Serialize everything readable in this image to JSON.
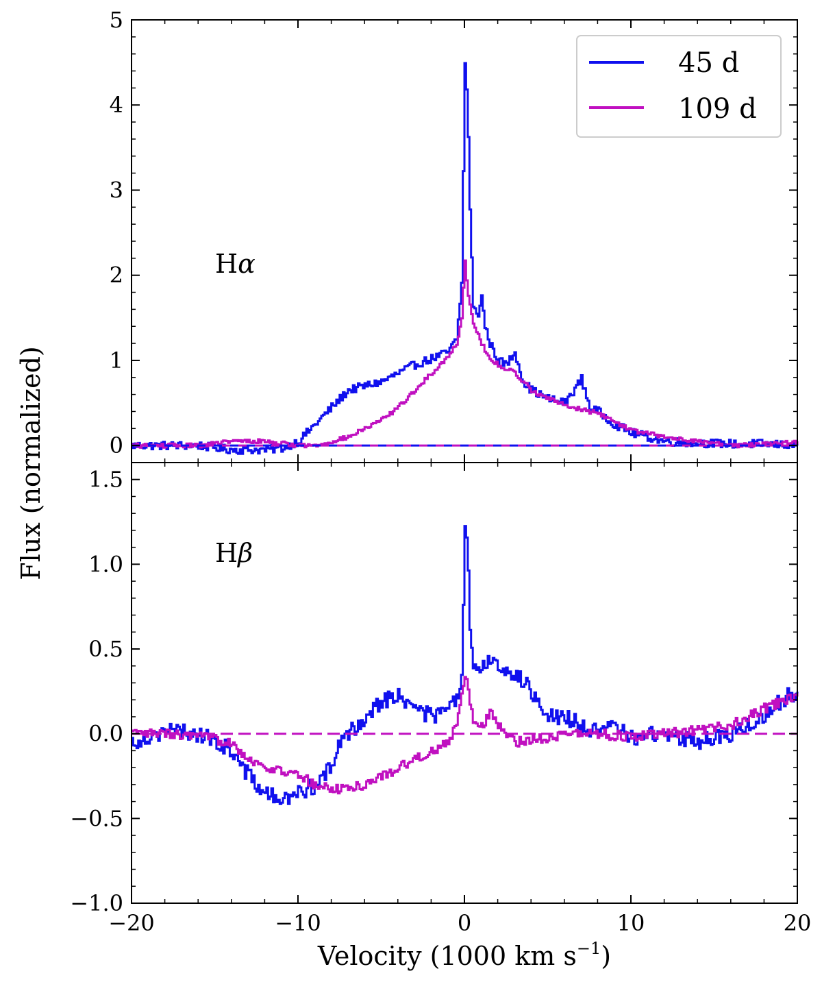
{
  "chart_data": [
    {
      "type": "line",
      "panel": "top",
      "annotation": "Hα",
      "annotation_parts": {
        "base": "H",
        "greek": "α"
      },
      "xlim": [
        -20,
        20
      ],
      "ylim": [
        -0.2,
        5
      ],
      "xticks": [
        -20,
        -10,
        0,
        10,
        20
      ],
      "yticks": [
        0,
        1,
        2,
        3,
        4,
        5
      ],
      "ytick_labels": [
        "0",
        "1",
        "2",
        "3",
        "4",
        "5"
      ],
      "zero_line": {
        "style": "dashed",
        "colors": [
          "#1010ee",
          "#c010c0"
        ]
      },
      "series": [
        {
          "name": "45 d",
          "color": "#1010ee",
          "x": [
            -20,
            -18,
            -16,
            -14,
            -12,
            -11,
            -10,
            -9,
            -8,
            -7,
            -6,
            -5,
            -4,
            -3,
            -2,
            -1,
            -0.5,
            -0.2,
            0,
            0.15,
            0.3,
            0.5,
            0.8,
            1.0,
            1.2,
            1.5,
            2,
            2.5,
            3,
            3.5,
            4,
            5,
            6,
            7,
            7.5,
            8,
            9,
            10,
            12,
            14,
            16,
            18,
            20
          ],
          "y": [
            0.0,
            0.0,
            0.0,
            -0.05,
            -0.05,
            -0.03,
            0.05,
            0.25,
            0.45,
            0.65,
            0.7,
            0.75,
            0.85,
            0.95,
            1.02,
            1.1,
            1.25,
            1.9,
            4.52,
            4.0,
            2.8,
            1.6,
            1.55,
            1.75,
            1.4,
            1.2,
            1.0,
            0.95,
            1.1,
            0.75,
            0.65,
            0.55,
            0.5,
            0.78,
            0.45,
            0.4,
            0.25,
            0.15,
            0.05,
            0.03,
            0.02,
            0.02,
            0.0
          ],
          "noise_amplitude": 0.05
        },
        {
          "name": "109 d",
          "color": "#c010c0",
          "x": [
            -20,
            -18,
            -16,
            -14,
            -12,
            -10,
            -9,
            -8,
            -7,
            -6,
            -5,
            -4,
            -3,
            -2,
            -1,
            -0.5,
            -0.2,
            0,
            0.2,
            0.5,
            1,
            1.5,
            2,
            3,
            4,
            5,
            6,
            7,
            8,
            9,
            10,
            12,
            14,
            16,
            18,
            20
          ],
          "y": [
            0.0,
            0.0,
            0.0,
            0.05,
            0.05,
            0.0,
            0.0,
            0.05,
            0.1,
            0.2,
            0.3,
            0.45,
            0.65,
            0.85,
            1.05,
            1.2,
            1.5,
            2.18,
            1.75,
            1.45,
            1.2,
            1.0,
            0.95,
            0.85,
            0.65,
            0.55,
            0.48,
            0.42,
            0.38,
            0.28,
            0.18,
            0.1,
            0.05,
            0.0,
            0.02,
            0.05
          ],
          "noise_amplitude": 0.025
        }
      ],
      "legend": {
        "position": "top-right",
        "entries": [
          "45 d",
          "109 d"
        ]
      }
    },
    {
      "type": "line",
      "panel": "bottom",
      "annotation": "Hβ",
      "annotation_parts": {
        "base": "H",
        "greek": "β"
      },
      "xlim": [
        -20,
        20
      ],
      "ylim": [
        -1.0,
        1.6
      ],
      "xticks": [
        -20,
        -10,
        0,
        10,
        20
      ],
      "xtick_labels": [
        "−20",
        "−10",
        "0",
        "10",
        "20"
      ],
      "yticks": [
        -1.0,
        -0.5,
        0.0,
        0.5,
        1.0,
        1.5
      ],
      "ytick_labels": [
        "−1.0",
        "−0.5",
        "0.0",
        "0.5",
        "1.0",
        "1.5"
      ],
      "zero_line": {
        "style": "dashed",
        "colors": [
          "#c010c0"
        ]
      },
      "series": [
        {
          "name": "45 d",
          "color": "#1010ee",
          "x": [
            -20,
            -18,
            -16,
            -14,
            -13,
            -12,
            -11,
            -10,
            -9,
            -8,
            -7.5,
            -7,
            -6,
            -5,
            -4,
            -3,
            -2,
            -1,
            -0.5,
            -0.2,
            0,
            0.15,
            0.3,
            0.5,
            1,
            1.5,
            2,
            3,
            4,
            4.5,
            5,
            6,
            7,
            8,
            9,
            10,
            12,
            14,
            16,
            18,
            19,
            20
          ],
          "y": [
            -0.05,
            0.02,
            0.0,
            -0.1,
            -0.25,
            -0.35,
            -0.4,
            -0.35,
            -0.3,
            -0.2,
            -0.05,
            0.0,
            0.1,
            0.2,
            0.22,
            0.15,
            0.1,
            0.15,
            0.2,
            0.3,
            1.25,
            1.1,
            0.6,
            0.35,
            0.4,
            0.45,
            0.4,
            0.35,
            0.25,
            0.2,
            0.1,
            0.1,
            0.05,
            0.0,
            0.05,
            -0.02,
            0.0,
            -0.05,
            0.0,
            0.1,
            0.2,
            0.25
          ],
          "noise_amplitude": 0.05
        },
        {
          "name": "109 d",
          "color": "#c010c0",
          "x": [
            -20,
            -18,
            -16,
            -14,
            -13,
            -12,
            -11,
            -10,
            -9,
            -8,
            -7,
            -6,
            -5,
            -4,
            -3,
            -2,
            -1,
            -0.5,
            0,
            0.3,
            0.5,
            1,
            1.5,
            2,
            3,
            4,
            5,
            6,
            8,
            10,
            12,
            14,
            16,
            18,
            20
          ],
          "y": [
            0.0,
            0.0,
            -0.02,
            -0.05,
            -0.15,
            -0.2,
            -0.22,
            -0.25,
            -0.3,
            -0.33,
            -0.32,
            -0.3,
            -0.25,
            -0.2,
            -0.15,
            -0.1,
            -0.05,
            0.05,
            0.34,
            0.2,
            0.08,
            0.05,
            0.12,
            0.05,
            -0.05,
            -0.03,
            -0.02,
            0.0,
            0.0,
            -0.02,
            0.0,
            0.02,
            0.05,
            0.15,
            0.22
          ],
          "noise_amplitude": 0.03
        }
      ]
    }
  ],
  "figure": {
    "xlabel": "Velocity (1000 km s",
    "xlabel_superscript": "−1",
    "xlabel_suffix": ")",
    "ylabel": "Flux (normalized)"
  }
}
